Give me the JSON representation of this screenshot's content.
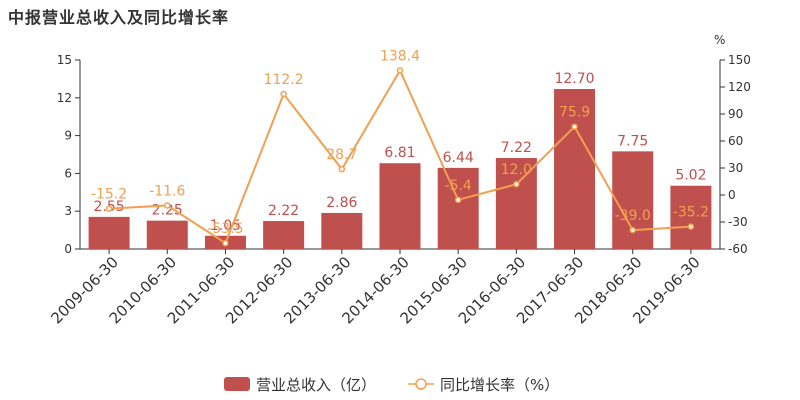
{
  "title": "中报营业总收入及同比增长率",
  "chart_data": {
    "type": "bar",
    "categories": [
      "2009-06-30",
      "2010-06-30",
      "2011-06-30",
      "2012-06-30",
      "2013-06-30",
      "2014-06-30",
      "2015-06-30",
      "2016-06-30",
      "2017-06-30",
      "2018-06-30",
      "2019-06-30"
    ],
    "series": [
      {
        "name": "营业总收入（亿）",
        "type": "bar",
        "axis": "left",
        "color": "#c0504d",
        "values": [
          2.55,
          2.25,
          1.05,
          2.22,
          2.86,
          6.81,
          6.44,
          7.22,
          12.7,
          7.75,
          5.02
        ],
        "labels": [
          "2.55",
          "2.25",
          "1.05",
          "2.22",
          "2.86",
          "6.81",
          "6.44",
          "7.22",
          "12.70",
          "7.75",
          "5.02"
        ]
      },
      {
        "name": "同比增长率（%）",
        "type": "line",
        "axis": "right",
        "color": "#f0a050",
        "values": [
          -15.2,
          -11.6,
          -53.5,
          112.2,
          28.7,
          138.4,
          -5.4,
          12.0,
          75.9,
          -39.0,
          -35.2
        ],
        "labels": [
          "-15.2",
          "-11.6",
          "-53.5",
          "112.2",
          "28.7",
          "138.4",
          "-5.4",
          "12.0",
          "75.9",
          "-39.0",
          "-35.2"
        ]
      }
    ],
    "y_left": {
      "ylim": [
        0,
        15
      ],
      "ticks": [
        "0",
        "3",
        "6",
        "9",
        "12",
        "15"
      ],
      "tick_values": [
        0,
        3,
        6,
        9,
        12,
        15
      ]
    },
    "y_right": {
      "ylim": [
        -60,
        150
      ],
      "unit": "%",
      "ticks": [
        "-60",
        "-30",
        "0",
        "30",
        "60",
        "90",
        "120",
        "150"
      ],
      "tick_values": [
        -60,
        -30,
        0,
        30,
        60,
        90,
        120,
        150
      ]
    },
    "legend_position": "bottom-center",
    "grid": false
  }
}
